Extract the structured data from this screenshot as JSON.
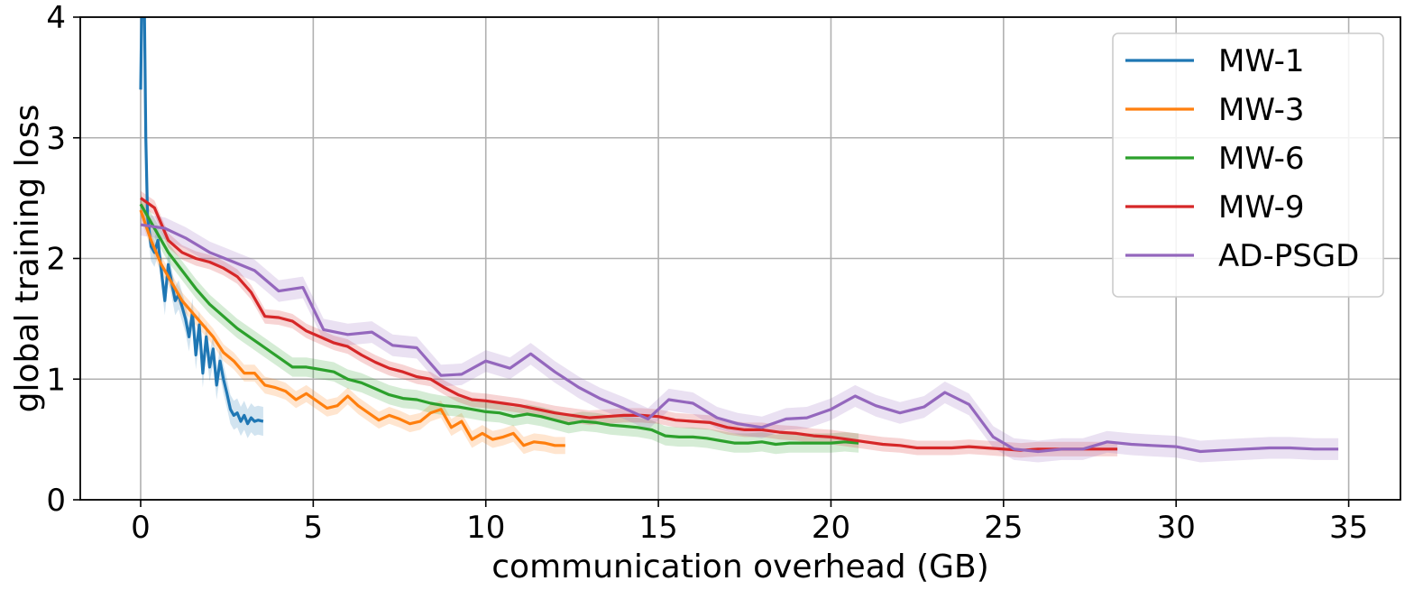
{
  "chart_data": {
    "type": "line",
    "xlabel": "communication overhead (GB)",
    "ylabel": "global training loss",
    "xlim": [
      -1.75,
      36.5
    ],
    "ylim": [
      0,
      4
    ],
    "xticks": [
      0,
      5,
      10,
      15,
      20,
      25,
      30,
      35
    ],
    "yticks": [
      0,
      1,
      2,
      3,
      4
    ],
    "grid": true,
    "legend_position": "top-right",
    "series": [
      {
        "name": "MW-1",
        "color": "#1f77b4",
        "band": 0.12,
        "x": [
          0.0,
          0.05,
          0.1,
          0.15,
          0.2,
          0.3,
          0.4,
          0.5,
          0.6,
          0.7,
          0.8,
          0.9,
          1.0,
          1.1,
          1.2,
          1.3,
          1.4,
          1.5,
          1.6,
          1.7,
          1.8,
          1.9,
          2.0,
          2.1,
          2.2,
          2.3,
          2.4,
          2.5,
          2.6,
          2.7,
          2.8,
          2.9,
          3.0,
          3.1,
          3.2,
          3.3,
          3.4,
          3.55
        ],
        "y": [
          3.4,
          4.5,
          4.3,
          3.0,
          2.35,
          2.1,
          2.05,
          2.15,
          1.9,
          1.65,
          1.95,
          1.8,
          1.65,
          1.7,
          1.6,
          1.5,
          1.35,
          1.55,
          1.2,
          1.45,
          1.05,
          1.35,
          1.1,
          1.25,
          0.95,
          1.15,
          1.0,
          0.88,
          0.75,
          0.7,
          0.72,
          0.65,
          0.7,
          0.63,
          0.68,
          0.65,
          0.66,
          0.65
        ]
      },
      {
        "name": "MW-3",
        "color": "#ff7f0e",
        "band": 0.07,
        "x": [
          0.0,
          0.3,
          0.6,
          0.9,
          1.2,
          1.5,
          1.8,
          2.1,
          2.4,
          2.7,
          3.0,
          3.3,
          3.6,
          3.9,
          4.2,
          4.5,
          4.8,
          5.1,
          5.4,
          5.7,
          6.0,
          6.3,
          6.6,
          6.9,
          7.2,
          7.5,
          7.8,
          8.1,
          8.4,
          8.7,
          9.0,
          9.3,
          9.6,
          9.9,
          10.2,
          10.5,
          10.8,
          11.1,
          11.4,
          11.7,
          12.0,
          12.3
        ],
        "y": [
          2.4,
          2.15,
          1.95,
          1.8,
          1.65,
          1.55,
          1.45,
          1.35,
          1.22,
          1.15,
          1.05,
          1.05,
          0.95,
          0.93,
          0.9,
          0.83,
          0.88,
          0.82,
          0.76,
          0.78,
          0.86,
          0.78,
          0.72,
          0.66,
          0.7,
          0.67,
          0.63,
          0.65,
          0.72,
          0.75,
          0.6,
          0.65,
          0.5,
          0.55,
          0.5,
          0.52,
          0.55,
          0.45,
          0.48,
          0.47,
          0.45,
          0.45
        ]
      },
      {
        "name": "MW-6",
        "color": "#2ca02c",
        "band": 0.08,
        "x": [
          0.0,
          0.4,
          0.8,
          1.2,
          1.6,
          2.0,
          2.4,
          2.8,
          3.2,
          3.6,
          4.0,
          4.4,
          4.8,
          5.2,
          5.6,
          6.0,
          6.4,
          6.8,
          7.2,
          7.6,
          8.0,
          8.4,
          8.8,
          9.2,
          9.6,
          10.0,
          10.4,
          10.8,
          11.2,
          11.6,
          12.0,
          12.4,
          12.8,
          13.2,
          13.6,
          14.0,
          14.4,
          14.8,
          15.2,
          15.6,
          16.0,
          16.4,
          16.8,
          17.2,
          17.6,
          18.0,
          18.4,
          18.8,
          19.2,
          19.6,
          20.0,
          20.4,
          20.8
        ],
        "y": [
          2.45,
          2.25,
          2.05,
          1.9,
          1.75,
          1.62,
          1.52,
          1.42,
          1.34,
          1.26,
          1.18,
          1.1,
          1.1,
          1.08,
          1.06,
          1.0,
          0.97,
          0.92,
          0.87,
          0.84,
          0.83,
          0.8,
          0.78,
          0.77,
          0.75,
          0.73,
          0.72,
          0.69,
          0.71,
          0.69,
          0.66,
          0.63,
          0.65,
          0.64,
          0.62,
          0.61,
          0.6,
          0.58,
          0.53,
          0.52,
          0.52,
          0.51,
          0.49,
          0.47,
          0.47,
          0.48,
          0.46,
          0.47,
          0.47,
          0.47,
          0.47,
          0.48,
          0.47
        ]
      },
      {
        "name": "MW-9",
        "color": "#d62728",
        "band": 0.06,
        "x": [
          0.0,
          0.4,
          0.8,
          1.2,
          1.6,
          2.0,
          2.4,
          2.8,
          3.2,
          3.6,
          4.0,
          4.4,
          4.8,
          5.2,
          5.6,
          6.0,
          6.4,
          6.8,
          7.2,
          7.6,
          8.0,
          8.4,
          8.8,
          9.2,
          9.6,
          10.0,
          10.5,
          11.0,
          11.5,
          12.0,
          12.5,
          13.0,
          13.5,
          14.0,
          14.5,
          15.0,
          15.5,
          16.0,
          16.5,
          17.0,
          17.5,
          18.0,
          18.5,
          19.0,
          19.5,
          20.0,
          20.5,
          21.0,
          21.5,
          22.0,
          22.5,
          23.0,
          23.5,
          24.0,
          24.5,
          25.0,
          25.5,
          26.0,
          26.5,
          27.0,
          27.5,
          28.0,
          28.3
        ],
        "y": [
          2.5,
          2.42,
          2.15,
          2.05,
          2.0,
          1.97,
          1.92,
          1.85,
          1.72,
          1.52,
          1.51,
          1.48,
          1.4,
          1.35,
          1.3,
          1.27,
          1.2,
          1.14,
          1.09,
          1.06,
          1.02,
          1.0,
          0.93,
          0.87,
          0.83,
          0.82,
          0.8,
          0.78,
          0.75,
          0.72,
          0.7,
          0.68,
          0.69,
          0.7,
          0.7,
          0.69,
          0.66,
          0.65,
          0.64,
          0.6,
          0.58,
          0.58,
          0.56,
          0.55,
          0.53,
          0.52,
          0.5,
          0.48,
          0.46,
          0.45,
          0.43,
          0.43,
          0.43,
          0.44,
          0.43,
          0.42,
          0.41,
          0.42,
          0.42,
          0.42,
          0.42,
          0.42,
          0.42
        ]
      },
      {
        "name": "AD-PSGD",
        "color": "#9467bd",
        "band": 0.09,
        "x": [
          0.0,
          0.7,
          1.3,
          2.0,
          2.7,
          3.3,
          4.0,
          4.7,
          5.3,
          6.0,
          6.7,
          7.3,
          8.0,
          8.7,
          9.3,
          10.0,
          10.7,
          11.3,
          12.0,
          12.7,
          13.3,
          14.0,
          14.7,
          15.3,
          16.0,
          16.7,
          17.3,
          18.0,
          18.7,
          19.3,
          20.0,
          20.7,
          21.3,
          22.0,
          22.7,
          23.3,
          24.0,
          24.7,
          25.3,
          26.0,
          26.7,
          27.3,
          28.0,
          28.7,
          29.3,
          30.0,
          30.7,
          31.3,
          32.0,
          32.7,
          33.3,
          34.0,
          34.7
        ],
        "y": [
          2.28,
          2.25,
          2.17,
          2.05,
          1.97,
          1.9,
          1.73,
          1.76,
          1.41,
          1.37,
          1.39,
          1.28,
          1.26,
          1.03,
          1.04,
          1.15,
          1.09,
          1.21,
          1.06,
          0.93,
          0.84,
          0.76,
          0.67,
          0.83,
          0.8,
          0.68,
          0.63,
          0.6,
          0.67,
          0.68,
          0.75,
          0.86,
          0.78,
          0.72,
          0.77,
          0.89,
          0.79,
          0.52,
          0.42,
          0.4,
          0.42,
          0.42,
          0.48,
          0.46,
          0.45,
          0.44,
          0.4,
          0.41,
          0.42,
          0.43,
          0.43,
          0.42,
          0.42
        ]
      }
    ]
  }
}
